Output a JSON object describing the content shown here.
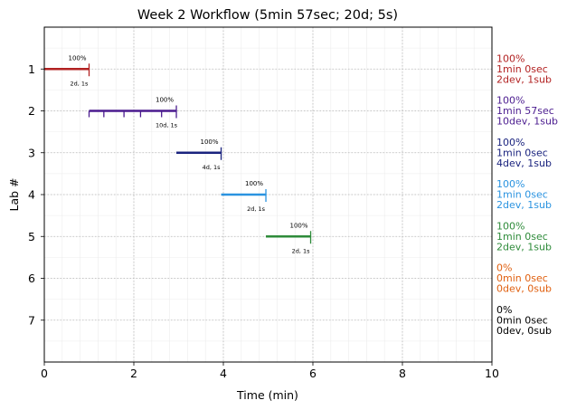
{
  "chart_data": {
    "type": "timeline",
    "title": "Week 2 Workflow (5min 57sec; 20d; 5s)",
    "xlabel": "Time (min)",
    "ylabel": "Lab #",
    "xlim": [
      0,
      10
    ],
    "ylim": [
      8,
      0
    ],
    "xticks": [
      "0",
      "2",
      "4",
      "6",
      "8",
      "10"
    ],
    "yticks": [
      "1",
      "2",
      "3",
      "4",
      "5",
      "6",
      "7"
    ],
    "grid": true,
    "labs": [
      {
        "lab": "1",
        "start": 0.0,
        "end": 1.0,
        "dev_marks": [],
        "sub_marks": [
          1.0
        ],
        "pct_label": "100%",
        "count_label": "2d, 1s",
        "color": "#b22222",
        "side_label": [
          "100%",
          "1min 0sec",
          "2dev, 1sub"
        ]
      },
      {
        "lab": "2",
        "start": 1.0,
        "end": 2.95,
        "dev_marks": [
          1.0,
          1.33,
          1.78,
          2.15,
          2.62
        ],
        "sub_marks": [
          2.95
        ],
        "pct_label": "100%",
        "count_label": "10d, 1s",
        "color": "#4b1c8f",
        "side_label": [
          "100%",
          "1min 57sec",
          "10dev, 1sub"
        ]
      },
      {
        "lab": "3",
        "start": 2.95,
        "end": 3.95,
        "dev_marks": [],
        "sub_marks": [
          3.95
        ],
        "pct_label": "100%",
        "count_label": "4d, 1s",
        "color": "#1a237e",
        "side_label": [
          "100%",
          "1min 0sec",
          "4dev, 1sub"
        ]
      },
      {
        "lab": "4",
        "start": 3.95,
        "end": 4.95,
        "dev_marks": [],
        "sub_marks": [
          4.95
        ],
        "pct_label": "100%",
        "count_label": "2d, 1s",
        "color": "#2a93e0",
        "side_label": [
          "100%",
          "1min 0sec",
          "2dev, 1sub"
        ]
      },
      {
        "lab": "5",
        "start": 4.95,
        "end": 5.95,
        "dev_marks": [],
        "sub_marks": [
          5.95
        ],
        "pct_label": "100%",
        "count_label": "2d, 1s",
        "color": "#2e8b3a",
        "side_label": [
          "100%",
          "1min 0sec",
          "2dev, 1sub"
        ]
      },
      {
        "lab": "6",
        "start": null,
        "end": null,
        "dev_marks": [],
        "sub_marks": [],
        "pct_label": "",
        "count_label": "",
        "color": "#e06010",
        "side_label": [
          "0%",
          "0min 0sec",
          "0dev, 0sub"
        ]
      },
      {
        "lab": "7",
        "start": null,
        "end": null,
        "dev_marks": [],
        "sub_marks": [],
        "pct_label": "",
        "count_label": "",
        "color": "#000000",
        "side_label": [
          "0%",
          "0min 0sec",
          "0dev, 0sub"
        ]
      }
    ]
  }
}
